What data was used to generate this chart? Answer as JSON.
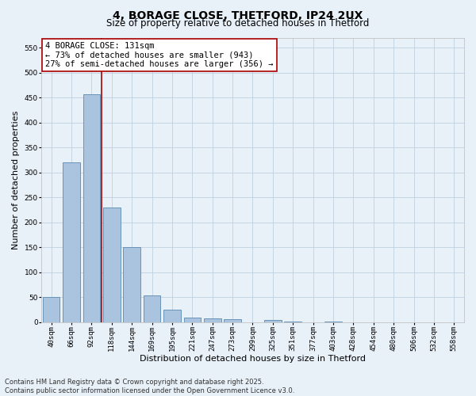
{
  "title_line1": "4, BORAGE CLOSE, THETFORD, IP24 2UX",
  "title_line2": "Size of property relative to detached houses in Thetford",
  "xlabel": "Distribution of detached houses by size in Thetford",
  "ylabel": "Number of detached properties",
  "categories": [
    "40sqm",
    "66sqm",
    "92sqm",
    "118sqm",
    "144sqm",
    "169sqm",
    "195sqm",
    "221sqm",
    "247sqm",
    "273sqm",
    "299sqm",
    "325sqm",
    "351sqm",
    "377sqm",
    "403sqm",
    "428sqm",
    "454sqm",
    "480sqm",
    "506sqm",
    "532sqm",
    "558sqm"
  ],
  "values": [
    50,
    320,
    456,
    230,
    150,
    54,
    25,
    9,
    8,
    6,
    0,
    4,
    1,
    0,
    1,
    0,
    0,
    0,
    0,
    0,
    0
  ],
  "bar_color": "#aac4e0",
  "bar_edge_color": "#5a8ab0",
  "vline_color": "#aa0000",
  "vline_x_index": 2.5,
  "annotation_text": "4 BORAGE CLOSE: 131sqm\n← 73% of detached houses are smaller (943)\n27% of semi-detached houses are larger (356) →",
  "annotation_box_color": "#ffffff",
  "annotation_box_edge_color": "#aa0000",
  "ylim": [
    0,
    570
  ],
  "yticks": [
    0,
    50,
    100,
    150,
    200,
    250,
    300,
    350,
    400,
    450,
    500,
    550
  ],
  "grid_color": "#c0d0e0",
  "background_color": "#e8f0f8",
  "footer_line1": "Contains HM Land Registry data © Crown copyright and database right 2025.",
  "footer_line2": "Contains public sector information licensed under the Open Government Licence v3.0.",
  "title_fontsize": 10,
  "subtitle_fontsize": 8.5,
  "axis_label_fontsize": 8,
  "tick_fontsize": 6.5,
  "annotation_fontsize": 7.5,
  "footer_fontsize": 6
}
